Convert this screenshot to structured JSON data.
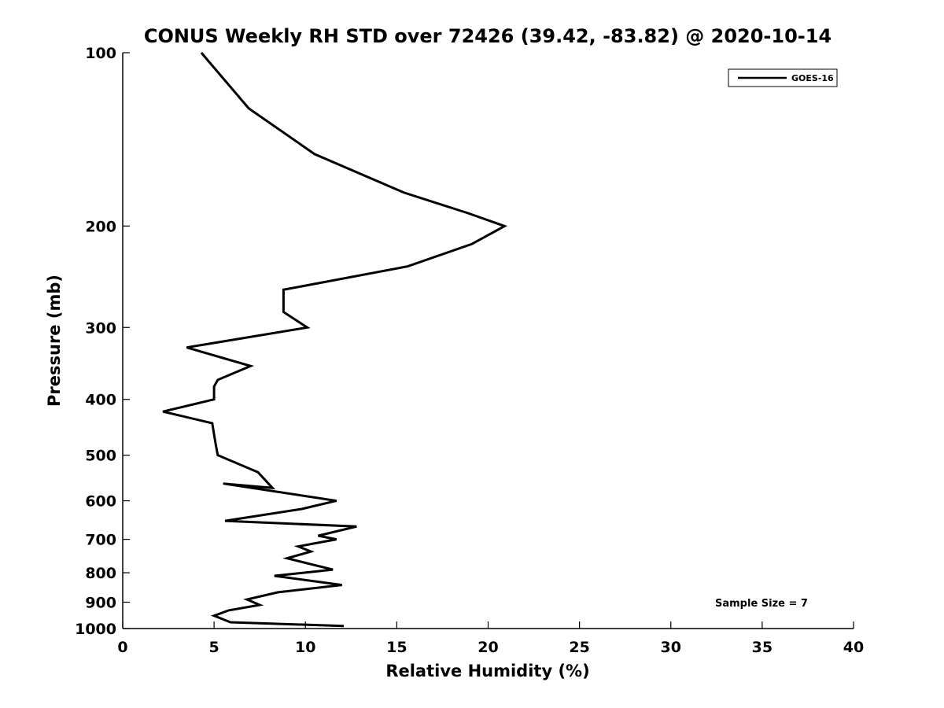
{
  "chart_data": {
    "type": "line",
    "title": "CONUS Weekly RH STD over 72426 (39.42, -83.82) @ 2020-10-14",
    "xlabel": "Relative Humidity (%)",
    "ylabel": "Pressure (mb)",
    "xlim": [
      0,
      40
    ],
    "ylim": [
      100,
      1000
    ],
    "y_scale": "log",
    "y_reversed": true,
    "grid": false,
    "legend_position": "top-right",
    "x_ticks": [
      0,
      5,
      10,
      15,
      20,
      25,
      30,
      35,
      40
    ],
    "y_ticks": [
      100,
      200,
      300,
      400,
      500,
      600,
      700,
      800,
      900,
      1000
    ],
    "annotation": "Sample Size = 7",
    "series": [
      {
        "name": "GOES-16",
        "color": "#000000",
        "points": [
          [
            4.3,
            100
          ],
          [
            6.9,
            125
          ],
          [
            10.5,
            150
          ],
          [
            15.4,
            175
          ],
          [
            18.9,
            190
          ],
          [
            20.9,
            200
          ],
          [
            19.1,
            215
          ],
          [
            15.6,
            235
          ],
          [
            8.8,
            258
          ],
          [
            8.8,
            282
          ],
          [
            10.1,
            300
          ],
          [
            3.5,
            325
          ],
          [
            7.0,
            350
          ],
          [
            5.2,
            370
          ],
          [
            5.0,
            380
          ],
          [
            5.0,
            400
          ],
          [
            2.2,
            420
          ],
          [
            4.9,
            440
          ],
          [
            5.0,
            460
          ],
          [
            5.1,
            480
          ],
          [
            5.2,
            500
          ],
          [
            7.4,
            535
          ],
          [
            8.2,
            570
          ],
          [
            5.5,
            560
          ],
          [
            11.7,
            600
          ],
          [
            9.8,
            620
          ],
          [
            5.6,
            650
          ],
          [
            12.8,
            665
          ],
          [
            10.7,
            690
          ],
          [
            11.7,
            700
          ],
          [
            9.6,
            720
          ],
          [
            10.3,
            735
          ],
          [
            9.0,
            755
          ],
          [
            11.5,
            790
          ],
          [
            8.3,
            810
          ],
          [
            12.0,
            840
          ],
          [
            8.5,
            865
          ],
          [
            6.8,
            890
          ],
          [
            7.5,
            910
          ],
          [
            5.8,
            930
          ],
          [
            5.0,
            950
          ],
          [
            5.9,
            975
          ],
          [
            12.1,
            990
          ]
        ]
      }
    ]
  }
}
